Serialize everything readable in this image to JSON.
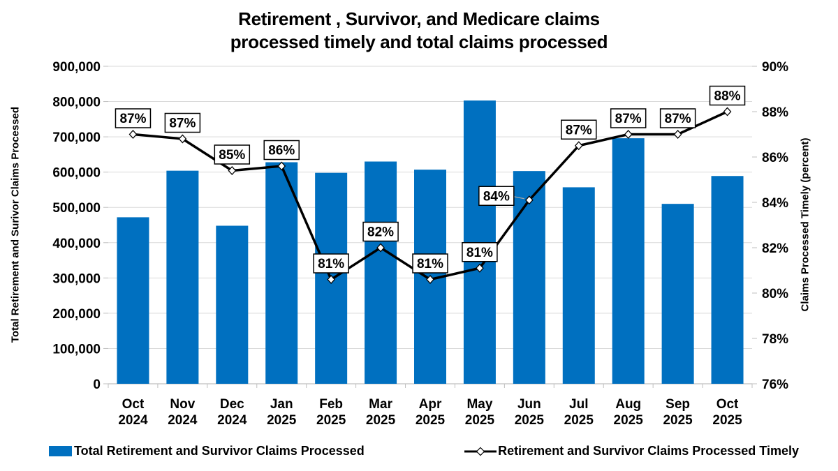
{
  "title": {
    "line1": "Retirement , Survivor, and Medicare claims",
    "line2": "processed timely and total claims processed"
  },
  "left_axis": {
    "title": "Total Retirement and Surivor Claims Processed",
    "tick_labels": [
      "0",
      "100,000",
      "200,000",
      "300,000",
      "400,000",
      "500,000",
      "600,000",
      "700,000",
      "800,000",
      "900,000"
    ]
  },
  "right_axis": {
    "title": "Claims Processed Timely (percent)",
    "tick_labels": [
      "76%",
      "78%",
      "80%",
      "82%",
      "84%",
      "86%",
      "88%",
      "90%"
    ]
  },
  "legend": {
    "bar_label": "Total Retirement and Survivor Claims Processed",
    "line_label": "Retirement and Survivor Claims Processed Timely"
  },
  "colors": {
    "bar": "#0070C0",
    "line": "#000000",
    "grid": "#D9D9D9",
    "axis": "#BFBFBF",
    "label_box_border": "#000000",
    "label_box_fill": "#FFFFFF",
    "leader": "#A6A6A6"
  },
  "chart_data": {
    "type": "combo",
    "categories": [
      "Oct 2024",
      "Nov 2024",
      "Dec 2024",
      "Jan 2025",
      "Feb 2025",
      "Mar 2025",
      "Apr 2025",
      "May 2025",
      "Jun 2025",
      "Jul 2025",
      "Aug 2025",
      "Sep 2025",
      "Oct 2025"
    ],
    "series": [
      {
        "name": "Total Retirement and Survivor Claims Processed",
        "type": "bar",
        "axis": "left",
        "values": [
          472000,
          604000,
          448000,
          628000,
          598000,
          630000,
          607000,
          803000,
          603000,
          557000,
          696000,
          510000,
          589000
        ]
      },
      {
        "name": "Retirement and Survivor Claims Processed Timely",
        "type": "line",
        "axis": "right",
        "labels": [
          "87%",
          "87%",
          "85%",
          "86%",
          "81%",
          "82%",
          "81%",
          "81%",
          "84%",
          "87%",
          "87%",
          "87%",
          "88%"
        ],
        "values": [
          87,
          87,
          85,
          86,
          81,
          82,
          81,
          81,
          84,
          87,
          87,
          87,
          88
        ],
        "plot_values": [
          87.0,
          86.8,
          85.4,
          85.6,
          80.6,
          82.0,
          80.6,
          81.1,
          84.1,
          86.5,
          87.0,
          87.0,
          88.0
        ]
      }
    ],
    "left_axis_range": [
      0,
      900000
    ],
    "left_axis_step": 100000,
    "right_axis_range": [
      76,
      90
    ],
    "right_axis_step": 2,
    "grid": true,
    "legend_position": "bottom",
    "label_offsets": {
      "8": {
        "dx": -47,
        "dy": -6,
        "leader": true
      }
    }
  }
}
